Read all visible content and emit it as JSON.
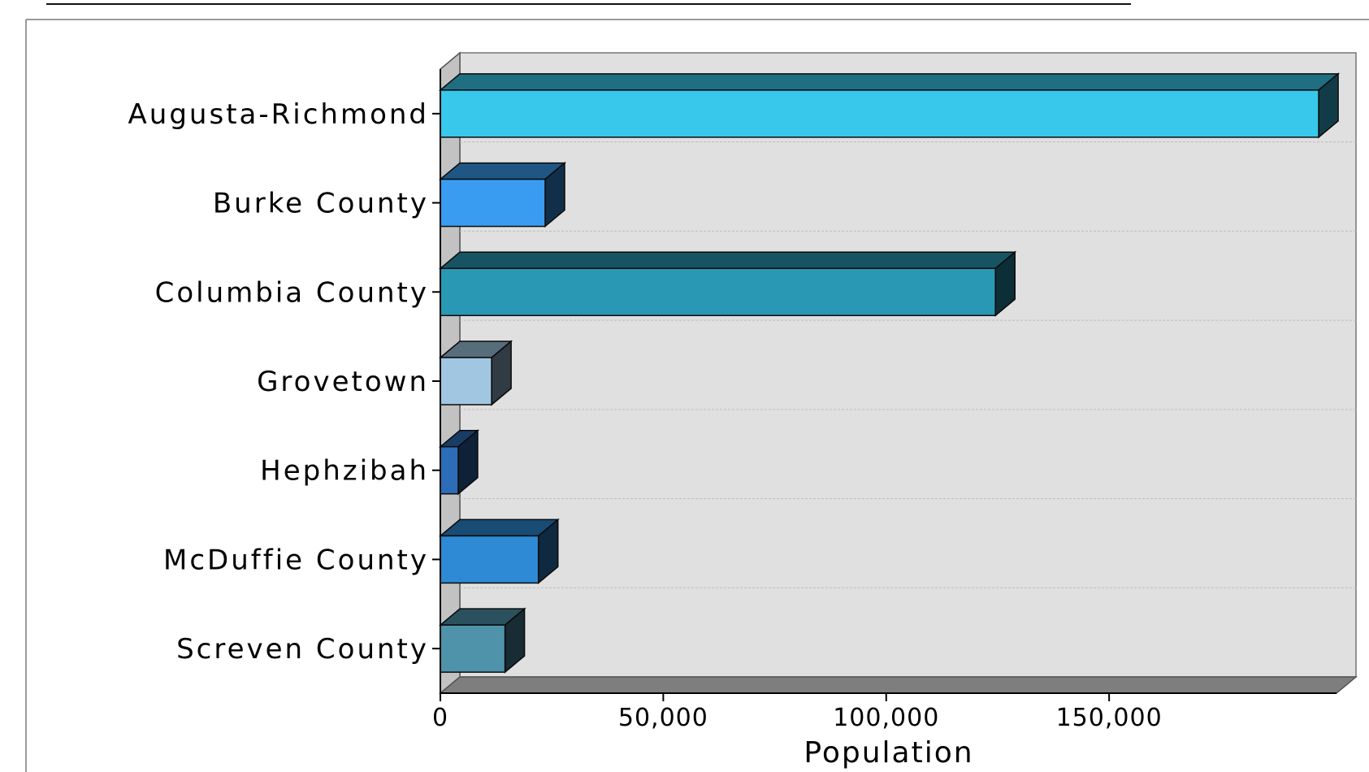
{
  "chart_data": {
    "type": "bar",
    "orientation": "horizontal",
    "style": "3d",
    "title": "",
    "xlabel": "Population",
    "ylabel": "",
    "categories": [
      "Augusta-Richmond",
      "Burke County",
      "Columbia County",
      "Grovetown",
      "Hephzibah",
      "McDuffie County",
      "Screven County"
    ],
    "values": [
      197000,
      23500,
      124500,
      11500,
      4000,
      22000,
      14500
    ],
    "bar_colors": [
      "#38c8ec",
      "#3a9cf0",
      "#2898b4",
      "#a0c6e2",
      "#2d6db8",
      "#2e8ad4",
      "#4f93ab"
    ],
    "xlim": [
      0,
      201000
    ],
    "x_ticks": [
      0,
      50000,
      100000,
      150000
    ],
    "x_tick_labels": [
      "0",
      "50,000",
      "100,000",
      "150,000"
    ],
    "grid": true,
    "legend": "none"
  }
}
